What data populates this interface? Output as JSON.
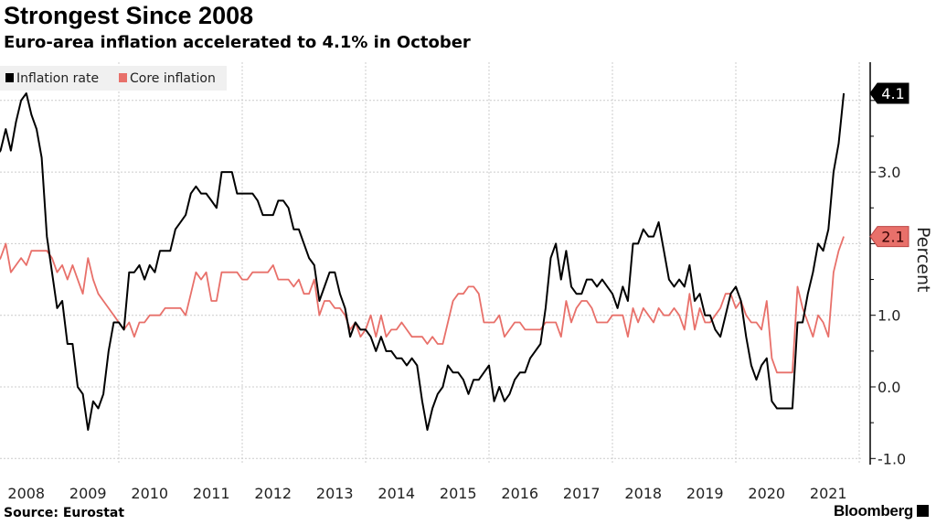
{
  "title": "Strongest Since 2008",
  "subtitle": "Euro-area inflation accelerated to 4.1% in October",
  "source": "Source: Eurostat",
  "logo": "Bloomberg",
  "chart_data": {
    "type": "line",
    "title": "Strongest Since 2008",
    "ylabel": "Percent",
    "ylim": [
      -1.0,
      4.4
    ],
    "yticks": [
      -1.0,
      0.0,
      1.0,
      3.0
    ],
    "ytick_labels": [
      "-1.0",
      "0.0",
      "1.0",
      "3.0"
    ],
    "x_start": "2008-01",
    "x_end": "2021-10",
    "x_frequency": "monthly",
    "xtick_labels": [
      "2008",
      "2009",
      "2010",
      "2011",
      "2012",
      "2013",
      "2014",
      "2015",
      "2016",
      "2017",
      "2018",
      "2019",
      "2020",
      "2021"
    ],
    "grid": true,
    "legend_position": "top-left",
    "series": [
      {
        "name": "Inflation rate",
        "color": "#000000",
        "last_label": "4.1",
        "values": [
          3.2,
          3.3,
          3.6,
          3.3,
          3.7,
          4.0,
          4.1,
          3.8,
          3.6,
          3.2,
          2.1,
          1.6,
          1.1,
          1.2,
          0.6,
          0.6,
          0.0,
          -0.1,
          -0.6,
          -0.2,
          -0.3,
          -0.1,
          0.5,
          0.9,
          0.9,
          0.8,
          1.6,
          1.6,
          1.7,
          1.5,
          1.7,
          1.6,
          1.9,
          1.9,
          1.9,
          2.2,
          2.3,
          2.4,
          2.7,
          2.8,
          2.7,
          2.7,
          2.6,
          2.5,
          3.0,
          3.0,
          3.0,
          2.7,
          2.7,
          2.7,
          2.7,
          2.6,
          2.4,
          2.4,
          2.4,
          2.6,
          2.6,
          2.5,
          2.2,
          2.2,
          2.0,
          1.8,
          1.7,
          1.2,
          1.4,
          1.6,
          1.6,
          1.3,
          1.1,
          0.7,
          0.9,
          0.8,
          0.8,
          0.7,
          0.5,
          0.7,
          0.5,
          0.5,
          0.4,
          0.4,
          0.3,
          0.4,
          0.3,
          -0.2,
          -0.6,
          -0.3,
          -0.1,
          0.0,
          0.3,
          0.2,
          0.2,
          0.1,
          -0.1,
          0.1,
          0.1,
          0.2,
          0.3,
          -0.2,
          0.0,
          -0.2,
          -0.1,
          0.1,
          0.2,
          0.2,
          0.4,
          0.5,
          0.6,
          1.1,
          1.8,
          2.0,
          1.5,
          1.9,
          1.4,
          1.3,
          1.3,
          1.5,
          1.5,
          1.4,
          1.5,
          1.4,
          1.3,
          1.1,
          1.4,
          1.2,
          2.0,
          2.0,
          2.2,
          2.1,
          2.1,
          2.3,
          1.9,
          1.5,
          1.4,
          1.5,
          1.4,
          1.7,
          1.2,
          1.3,
          1.0,
          1.0,
          0.8,
          0.7,
          1.0,
          1.3,
          1.4,
          1.2,
          0.7,
          0.3,
          0.1,
          0.3,
          0.4,
          -0.2,
          -0.3,
          -0.3,
          -0.3,
          -0.3,
          0.9,
          0.9,
          1.3,
          1.6,
          2.0,
          1.9,
          2.2,
          3.0,
          3.4,
          4.1
        ]
      },
      {
        "name": "Core inflation",
        "color": "#e8706a",
        "last_label": "2.1",
        "values": [
          1.7,
          1.8,
          2.0,
          1.6,
          1.7,
          1.8,
          1.7,
          1.9,
          1.9,
          1.9,
          1.9,
          1.8,
          1.6,
          1.7,
          1.5,
          1.7,
          1.5,
          1.3,
          1.8,
          1.5,
          1.3,
          1.2,
          1.1,
          1.0,
          0.9,
          0.8,
          0.9,
          0.7,
          0.9,
          0.9,
          1.0,
          1.0,
          1.0,
          1.1,
          1.1,
          1.1,
          1.1,
          1.0,
          1.3,
          1.6,
          1.5,
          1.6,
          1.2,
          1.2,
          1.6,
          1.6,
          1.6,
          1.6,
          1.5,
          1.5,
          1.6,
          1.6,
          1.6,
          1.6,
          1.7,
          1.5,
          1.5,
          1.5,
          1.4,
          1.5,
          1.3,
          1.3,
          1.5,
          1.0,
          1.2,
          1.2,
          1.1,
          1.1,
          1.0,
          0.8,
          0.9,
          0.7,
          0.8,
          1.0,
          0.7,
          1.0,
          0.7,
          0.8,
          0.8,
          0.9,
          0.8,
          0.7,
          0.7,
          0.7,
          0.6,
          0.7,
          0.6,
          0.6,
          0.9,
          1.2,
          1.3,
          1.3,
          1.4,
          1.4,
          1.3,
          0.9,
          0.9,
          0.9,
          1.0,
          0.7,
          0.8,
          0.9,
          0.9,
          0.8,
          0.8,
          0.8,
          0.8,
          0.9,
          0.9,
          0.9,
          0.7,
          1.2,
          0.9,
          1.1,
          1.2,
          1.2,
          1.1,
          0.9,
          0.9,
          0.9,
          1.0,
          1.0,
          1.0,
          0.7,
          1.1,
          0.9,
          1.1,
          1.0,
          0.9,
          1.1,
          1.0,
          1.0,
          1.1,
          1.0,
          0.8,
          1.3,
          0.8,
          1.1,
          0.9,
          0.9,
          1.0,
          1.1,
          1.3,
          1.3,
          1.1,
          1.2,
          1.0,
          0.9,
          0.9,
          0.8,
          1.2,
          0.4,
          0.2,
          0.2,
          0.2,
          0.2,
          1.4,
          1.1,
          0.9,
          0.7,
          1.0,
          0.9,
          0.7,
          1.6,
          1.9,
          2.1
        ]
      }
    ]
  }
}
